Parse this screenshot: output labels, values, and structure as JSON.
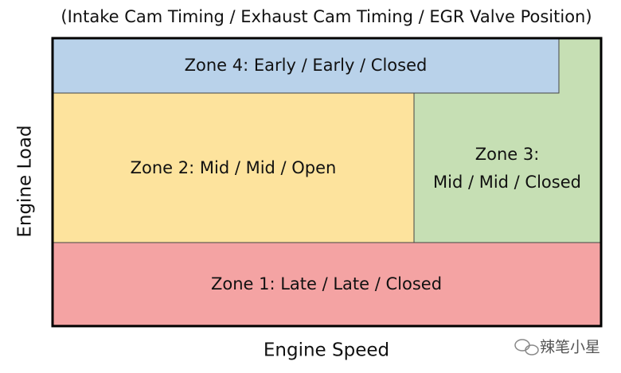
{
  "header": {
    "title": "(Intake Cam Timing / Exhaust Cam Timing / EGR Valve Position)"
  },
  "axes": {
    "x_label": "Engine Speed",
    "y_label": "Engine Load"
  },
  "zones": [
    {
      "lines": [
        "Zone 4: Early / Early / Closed"
      ]
    },
    {
      "lines": [
        "Zone 2: Mid / Mid / Open"
      ]
    },
    {
      "lines": [
        "Zone 3:",
        "Mid / Mid / Closed"
      ]
    },
    {
      "lines": [
        "Zone 1: Late / Late / Closed"
      ]
    }
  ],
  "watermark": {
    "text": "辣笔小星"
  }
}
